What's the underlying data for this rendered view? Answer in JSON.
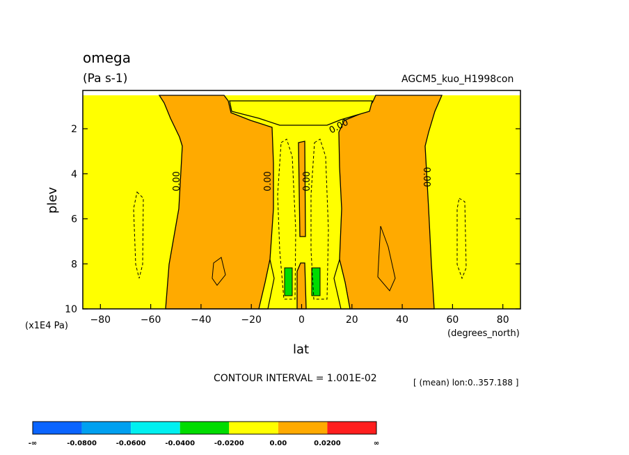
{
  "chart_data": {
    "type": "contour",
    "title": "omega",
    "units": "(Pa s-1)",
    "dataset": "AGCM5_kuo_H1998con",
    "xlabel": "lat",
    "xunits": "(degrees_north)",
    "ylabel": "plev",
    "yunits": "(x1E4 Pa)",
    "xlim": [
      -87,
      87
    ],
    "ylim": [
      10,
      0.3
    ],
    "y_inverted": true,
    "xticks": [
      -80,
      -60,
      -40,
      -20,
      0,
      20,
      40,
      60,
      80
    ],
    "yticks": [
      2,
      4,
      6,
      8,
      10
    ],
    "contour_interval_text": "CONTOUR INTERVAL = 1.001E-02",
    "mean_note": "[ (mean) lon:0..357.188 ]",
    "contour_labels": [
      "0.00",
      "0.00",
      "0.00",
      "0.00",
      "0.00"
    ],
    "colorbar": {
      "labels": [
        "-∞",
        "-0.0800",
        "-0.0600",
        "-0.0400",
        "-0.0200",
        "0.00",
        "0.0200",
        "∞"
      ],
      "colors": [
        "#0a64ff",
        "#00a0f0",
        "#00f0f0",
        "#00dc00",
        "#ffff00",
        "#ffaa00",
        "#ff1e1e"
      ]
    },
    "region_colors": {
      "below_-0.04": "#00dc00",
      "-0.02_to_0": "#ffff00",
      "0_to_0.02": "#ffaa00"
    },
    "grid": false,
    "legend_position": "bottom"
  }
}
